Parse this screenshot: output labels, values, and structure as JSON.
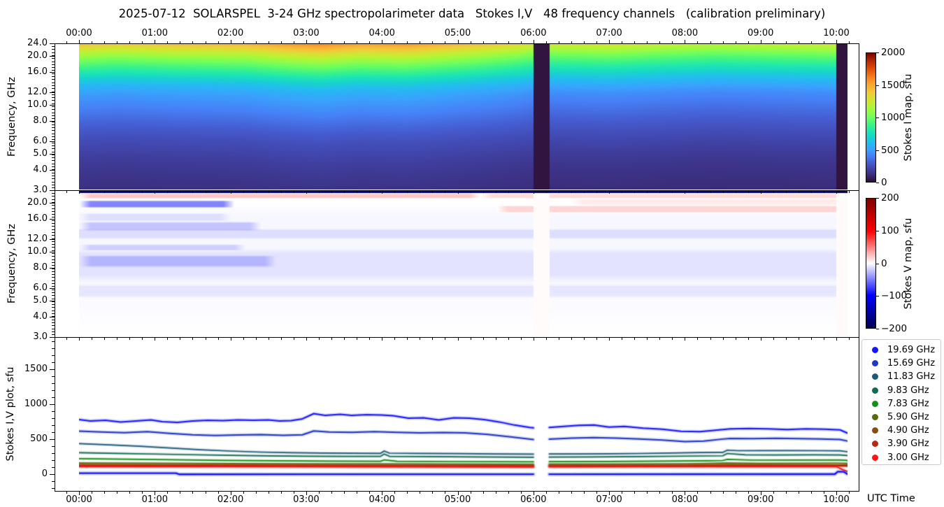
{
  "title": "2025-07-12  SOLARSPEL  3-24 GHz spectropolarimeter data   Stokes I,V   48 frequency channels   (calibration preliminary)",
  "time_axis": {
    "label": "UTC Time",
    "hours": [
      "00:00",
      "01:00",
      "02:00",
      "03:00",
      "04:00",
      "05:00",
      "06:00",
      "07:00",
      "08:00",
      "09:00",
      "10:00"
    ],
    "start_h": 0,
    "end_h": 10.147,
    "minor_step_min": 10
  },
  "freq_axis": {
    "label": "Frequency, GHz",
    "scale": "log",
    "min_ghz": 3,
    "max_ghz": 24,
    "major_ticks_ghz": [
      24,
      20,
      16,
      12,
      10,
      8,
      6,
      5,
      4,
      3
    ],
    "tick_labels_top_panel": [
      "24.0",
      "20.0",
      "16.0",
      "12.0",
      "10.0",
      "8.0",
      "6.0",
      "5.0",
      "4.0",
      "3.0"
    ],
    "tick_labels_middle_panel": [
      "20.0",
      "16.0",
      "12.0",
      "10.0",
      "8.0",
      "6.0",
      "5.0",
      "4.0",
      "3.0"
    ]
  },
  "chart_data": [
    {
      "type": "heatmap",
      "name": "stokes_i_dynamic_spectrum",
      "colorbar": {
        "label": "Stokes I map, sfu",
        "min": 0,
        "max": 2000,
        "ticks": [
          2000,
          1500,
          1000,
          500,
          0
        ],
        "tick_labels": [
          "2000",
          "1500",
          "1000",
          "500",
          "0"
        ],
        "colormap": "turbo"
      },
      "spectrum_ghz": [
        3,
        3.5,
        4,
        4.5,
        5,
        6,
        7,
        8,
        9,
        10,
        11,
        12,
        14,
        16,
        18,
        20,
        22,
        24
      ],
      "spectrum_sfu": [
        118,
        132,
        148,
        165,
        185,
        228,
        280,
        330,
        378,
        420,
        462,
        505,
        640,
        800,
        950,
        1100,
        1260,
        1420
      ],
      "time_factor_h": [
        0,
        0.5,
        1.2,
        2.2,
        2.8,
        3.2,
        3.7,
        4.3,
        4.8,
        5.3,
        5.8,
        6.0,
        6.21,
        7.0,
        7.6,
        8.4,
        9.2,
        10.0,
        10.147
      ],
      "time_factor": [
        1.0,
        0.97,
        1.0,
        1.03,
        1.1,
        1.13,
        1.08,
        1.1,
        1.05,
        1.0,
        0.94,
        0.9,
        0.88,
        0.9,
        0.87,
        0.84,
        0.86,
        0.88,
        0.85
      ],
      "data_gaps_h": [
        [
          6.0,
          6.21
        ],
        [
          10.0,
          10.147
        ]
      ],
      "gap_value_sfu": 8
    },
    {
      "type": "heatmap",
      "name": "stokes_v_dynamic_spectrum",
      "colorbar": {
        "label": "Stokes V map, sfu",
        "min": -200,
        "max": 200,
        "ticks": [
          200,
          100,
          0,
          -100,
          -200
        ],
        "tick_labels": [
          "200",
          "100",
          "0",
          "−100",
          "−200"
        ],
        "colormap": "seismic"
      },
      "features": [
        {
          "ghz": [
            23.2,
            24.0
          ],
          "h": [
            0,
            10.147
          ],
          "v_sfu": -170
        },
        {
          "ghz": [
            21.5,
            23.2
          ],
          "h": [
            0,
            5.3
          ],
          "v_sfu": 22
        },
        {
          "ghz": [
            21.5,
            23.2
          ],
          "h": [
            5.3,
            10.147
          ],
          "v_sfu": 14
        },
        {
          "ghz": [
            18.8,
            21.0
          ],
          "h": [
            0,
            2.05
          ],
          "v_sfu": -48
        },
        {
          "ghz": [
            15.5,
            17.5
          ],
          "h": [
            0,
            2.0
          ],
          "v_sfu": -10
        },
        {
          "ghz": [
            17.5,
            19.5
          ],
          "h": [
            5.5,
            10.147
          ],
          "v_sfu": 18
        },
        {
          "ghz": [
            19.5,
            21.5
          ],
          "h": [
            6.5,
            10.147
          ],
          "v_sfu": 8
        },
        {
          "ghz": [
            13.5,
            15.5
          ],
          "h": [
            0,
            2.4
          ],
          "v_sfu": -20
        },
        {
          "ghz": [
            12.0,
            14.0
          ],
          "h": [
            0,
            10.147
          ],
          "v_sfu": -10
        },
        {
          "ghz": [
            10.2,
            11.2
          ],
          "h": [
            0,
            2.2
          ],
          "v_sfu": -16
        },
        {
          "ghz": [
            8.0,
            9.6
          ],
          "h": [
            0,
            2.6
          ],
          "v_sfu": -18
        },
        {
          "ghz": [
            6.5,
            10.5
          ],
          "h": [
            0,
            10.147
          ],
          "v_sfu": -8
        },
        {
          "ghz": [
            5.2,
            6.3
          ],
          "h": [
            0,
            10.147
          ],
          "v_sfu": -7
        },
        {
          "ghz": [
            3.0,
            20.0
          ],
          "h": [
            0,
            10.147
          ],
          "v_sfu": -3
        }
      ],
      "data_gaps_h": [
        [
          6.0,
          6.21
        ],
        [
          10.0,
          10.147
        ]
      ],
      "gap_top_row_v_sfu": -230,
      "gap_value_v_sfu": 1.5
    },
    {
      "type": "line",
      "name": "stokes_iv_time_profiles",
      "ylabel": "Stokes I,V plot, sfu",
      "ylim_sfu": [
        -240,
        1960
      ],
      "yticks": [
        0,
        500,
        1000,
        1500
      ],
      "ytick_labels": [
        "0",
        "500",
        "1000",
        "1500"
      ],
      "minor_step_sfu": 100,
      "gap_h": [
        6.0,
        6.21
      ],
      "series": [
        {
          "label": "19.69 GHz",
          "color": "#1414ff",
          "lw": 2.0,
          "in_legend": true,
          "x": [
            0,
            0.15,
            0.35,
            0.55,
            0.75,
            0.95,
            1.1,
            1.3,
            1.5,
            1.7,
            1.9,
            2.1,
            2.3,
            2.5,
            2.65,
            2.8,
            2.95,
            3.1,
            3.25,
            3.45,
            3.6,
            3.8,
            4.0,
            4.15,
            4.35,
            4.55,
            4.75,
            4.95,
            5.15,
            5.35,
            5.55,
            5.75,
            5.95,
            6.0,
            6.21,
            6.4,
            6.6,
            6.8,
            7.0,
            7.2,
            7.45,
            7.7,
            7.95,
            8.2,
            8.45,
            8.6,
            8.85,
            9.1,
            9.35,
            9.6,
            9.85,
            10.05,
            10.147
          ],
          "y": [
            780,
            760,
            770,
            745,
            760,
            775,
            750,
            740,
            760,
            770,
            765,
            775,
            770,
            775,
            760,
            765,
            790,
            865,
            840,
            855,
            840,
            850,
            845,
            835,
            800,
            805,
            775,
            805,
            800,
            780,
            745,
            700,
            665,
            660,
            665,
            680,
            695,
            700,
            670,
            680,
            655,
            640,
            610,
            605,
            630,
            645,
            650,
            645,
            635,
            645,
            640,
            630,
            585
          ]
        },
        {
          "label": "15.69 GHz",
          "color": "#2136c4",
          "lw": 2.0,
          "in_legend": true,
          "x": [
            0,
            0.3,
            0.6,
            0.9,
            1.2,
            1.5,
            1.8,
            2.1,
            2.4,
            2.7,
            2.95,
            3.1,
            3.3,
            3.6,
            3.9,
            4.2,
            4.5,
            4.8,
            5.1,
            5.4,
            5.7,
            6.0,
            6.21,
            6.5,
            6.8,
            7.1,
            7.4,
            7.7,
            8.0,
            8.25,
            8.5,
            8.6,
            8.9,
            9.2,
            9.5,
            9.8,
            10.05,
            10.147
          ],
          "y": [
            612,
            600,
            590,
            605,
            580,
            560,
            550,
            558,
            562,
            552,
            560,
            615,
            600,
            595,
            605,
            595,
            588,
            592,
            588,
            565,
            530,
            492,
            497,
            512,
            520,
            512,
            500,
            485,
            462,
            468,
            498,
            508,
            505,
            510,
            505,
            498,
            492,
            470
          ]
        },
        {
          "label": "11.83 GHz",
          "color": "#1d5a7a",
          "lw": 1.7,
          "in_legend": true,
          "x": [
            0,
            0.4,
            0.8,
            1.2,
            1.6,
            2.0,
            2.4,
            2.8,
            3.2,
            3.6,
            3.98,
            4.03,
            4.1,
            4.5,
            5.0,
            5.5,
            6.0,
            6.21,
            6.6,
            7.0,
            7.4,
            7.8,
            8.2,
            8.5,
            8.56,
            8.7,
            9.0,
            9.4,
            9.8,
            10.05,
            10.147
          ],
          "y": [
            432,
            415,
            395,
            370,
            345,
            325,
            310,
            302,
            296,
            293,
            292,
            326,
            295,
            291,
            288,
            284,
            280,
            283,
            284,
            286,
            290,
            296,
            303,
            306,
            338,
            330,
            331,
            332,
            330,
            328,
            315
          ]
        },
        {
          "label": "9.83 GHz",
          "color": "#156b52",
          "lw": 1.7,
          "in_legend": true,
          "x": [
            0,
            0.5,
            1.0,
            1.5,
            2.0,
            2.5,
            3.0,
            3.5,
            3.98,
            4.03,
            4.1,
            4.6,
            5.2,
            6.0,
            6.21,
            6.8,
            7.4,
            8.0,
            8.5,
            8.56,
            8.8,
            9.2,
            9.7,
            10.05,
            10.147
          ],
          "y": [
            302,
            292,
            282,
            272,
            263,
            256,
            251,
            249,
            248,
            282,
            249,
            245,
            241,
            236,
            238,
            241,
            246,
            252,
            257,
            290,
            270,
            269,
            270,
            269,
            260
          ]
        },
        {
          "label": "7.83 GHz",
          "color": "#129112",
          "lw": 1.7,
          "in_legend": true,
          "x": [
            0,
            0.6,
            1.2,
            1.9,
            2.6,
            3.3,
            3.98,
            4.03,
            4.2,
            5.0,
            6.0,
            6.21,
            7.0,
            7.7,
            8.3,
            8.5,
            8.56,
            8.9,
            9.5,
            10.05,
            10.147
          ],
          "y": [
            216,
            208,
            200,
            191,
            185,
            180,
            178,
            197,
            177,
            174,
            170,
            172,
            175,
            181,
            186,
            189,
            205,
            194,
            195,
            196,
            190
          ]
        },
        {
          "label": "5.90 GHz",
          "color": "#566b11",
          "lw": 1.7,
          "in_legend": true,
          "x": [
            0,
            1,
            2,
            3,
            4,
            5,
            6,
            6.21,
            7,
            8,
            8.56,
            9,
            10,
            10.147
          ],
          "y": [
            152,
            149,
            145,
            141,
            140,
            138,
            136,
            137,
            138,
            141,
            152,
            148,
            151,
            148
          ]
        },
        {
          "label": "4.90 GHz",
          "color": "#8a4d11",
          "lw": 1.7,
          "in_legend": true,
          "x": [
            0,
            1.5,
            3,
            4.5,
            6,
            6.21,
            8,
            8.56,
            10,
            10.147
          ],
          "y": [
            129,
            126,
            123,
            121,
            119,
            120,
            123,
            131,
            126,
            124
          ]
        },
        {
          "label": "3.90 GHz",
          "color": "#b52d0e",
          "lw": 2.6,
          "in_legend": true,
          "x": [
            0,
            2,
            4,
            6,
            6.21,
            8,
            10,
            10.147
          ],
          "y": [
            114,
            112,
            110,
            108,
            109,
            111,
            113,
            111
          ]
        },
        {
          "label": "3.00 GHz",
          "color": "#ff1414",
          "lw": 1.9,
          "in_legend": true,
          "x": [
            0,
            2,
            4,
            6,
            6.21,
            8,
            10,
            10.0,
            10.08,
            10.147
          ],
          "y": [
            101,
            100,
            98,
            96,
            97,
            99,
            101,
            101,
            60,
            30
          ]
        },
        {
          "label": "",
          "color": "#1414ff",
          "lw": 2.4,
          "in_legend": false,
          "x": [
            0,
            1.28,
            1.32,
            3.0,
            6.0,
            6.21,
            9.6,
            9.98,
            10.02,
            10.1,
            10.147
          ],
          "y": [
            6,
            6,
            -10,
            -9,
            -9,
            -9,
            -8,
            -8,
            28,
            26,
            -8
          ]
        }
      ]
    }
  ]
}
